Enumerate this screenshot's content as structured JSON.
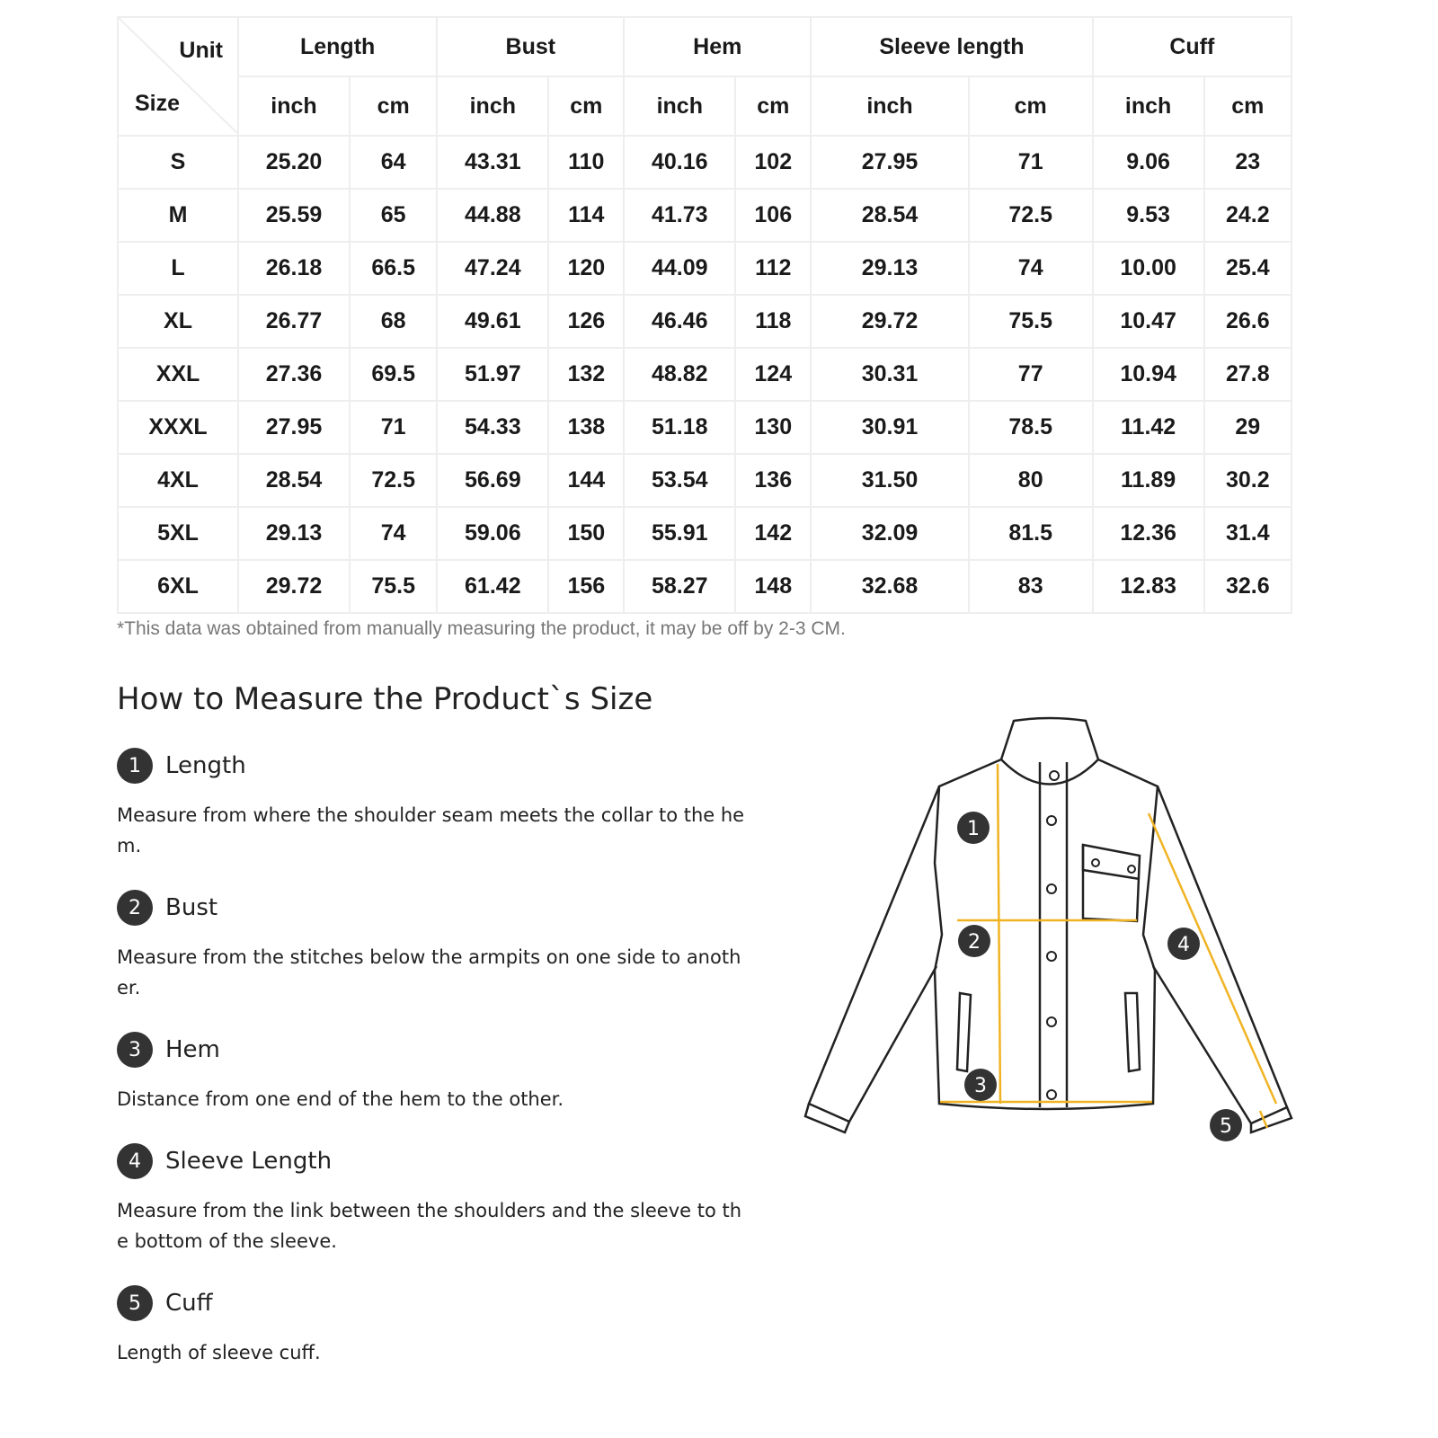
{
  "table": {
    "unit_label": "Unit",
    "size_label": "Size",
    "groups": [
      "Length",
      "Bust",
      "Hem",
      "Sleeve length",
      "Cuff"
    ],
    "units": [
      "inch",
      "cm"
    ],
    "rows": [
      [
        "S",
        "25.20",
        "64",
        "43.31",
        "110",
        "40.16",
        "102",
        "27.95",
        "71",
        "9.06",
        "23"
      ],
      [
        "M",
        "25.59",
        "65",
        "44.88",
        "114",
        "41.73",
        "106",
        "28.54",
        "72.5",
        "9.53",
        "24.2"
      ],
      [
        "L",
        "26.18",
        "66.5",
        "47.24",
        "120",
        "44.09",
        "112",
        "29.13",
        "74",
        "10.00",
        "25.4"
      ],
      [
        "XL",
        "26.77",
        "68",
        "49.61",
        "126",
        "46.46",
        "118",
        "29.72",
        "75.5",
        "10.47",
        "26.6"
      ],
      [
        "XXL",
        "27.36",
        "69.5",
        "51.97",
        "132",
        "48.82",
        "124",
        "30.31",
        "77",
        "10.94",
        "27.8"
      ],
      [
        "XXXL",
        "27.95",
        "71",
        "54.33",
        "138",
        "51.18",
        "130",
        "30.91",
        "78.5",
        "11.42",
        "29"
      ],
      [
        "4XL",
        "28.54",
        "72.5",
        "56.69",
        "144",
        "53.54",
        "136",
        "31.50",
        "80",
        "11.89",
        "30.2"
      ],
      [
        "5XL",
        "29.13",
        "74",
        "59.06",
        "150",
        "55.91",
        "142",
        "32.09",
        "81.5",
        "12.36",
        "31.4"
      ],
      [
        "6XL",
        "29.72",
        "75.5",
        "61.42",
        "156",
        "58.27",
        "148",
        "32.68",
        "83",
        "12.83",
        "32.6"
      ]
    ]
  },
  "note": "*This data was obtained from manually measuring the product, it may be off by 2-3 CM.",
  "guide": {
    "title": "How to Measure the Product`s Size",
    "items": [
      {
        "n": "1",
        "title": "Length",
        "desc": "Measure from where the shoulder seam meets the collar to the hem."
      },
      {
        "n": "2",
        "title": "Bust",
        "desc": "Measure from the stitches below the armpits on one side to another."
      },
      {
        "n": "3",
        "title": "Hem",
        "desc": "Distance from one end of the hem to the other."
      },
      {
        "n": "4",
        "title": "Sleeve Length",
        "desc": "Measure from the link between the shoulders and the sleeve to the bottom of the sleeve."
      },
      {
        "n": "5",
        "title": "Cuff",
        "desc": "Length of sleeve cuff."
      }
    ]
  },
  "colors": {
    "measure_line": "#f0b323",
    "marker": "#333333"
  }
}
